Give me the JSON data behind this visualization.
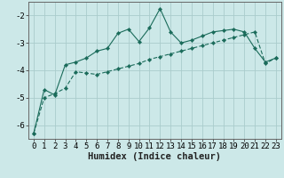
{
  "title": "",
  "xlabel": "Humidex (Indice chaleur)",
  "ylabel": "",
  "background_color": "#cce8e8",
  "grid_color": "#aacccc",
  "line_color": "#1a6b5a",
  "x_values": [
    0,
    1,
    2,
    3,
    4,
    5,
    6,
    7,
    8,
    9,
    10,
    11,
    12,
    13,
    14,
    15,
    16,
    17,
    18,
    19,
    20,
    21,
    22,
    23
  ],
  "line1_y": [
    -6.3,
    -4.7,
    -4.9,
    -3.8,
    -3.7,
    -3.55,
    -3.3,
    -3.2,
    -2.65,
    -2.5,
    -2.95,
    -2.45,
    -1.75,
    -2.6,
    -3.0,
    -2.9,
    -2.75,
    -2.6,
    -2.55,
    -2.5,
    -2.6,
    -3.2,
    -3.7,
    -3.55
  ],
  "line2_y": [
    -6.3,
    -5.0,
    -4.85,
    -4.65,
    -4.05,
    -4.1,
    -4.15,
    -4.05,
    -3.95,
    -3.85,
    -3.75,
    -3.6,
    -3.5,
    -3.4,
    -3.3,
    -3.2,
    -3.1,
    -3.0,
    -2.9,
    -2.8,
    -2.7,
    -2.6,
    -3.75,
    -3.55
  ],
  "ylim": [
    -6.5,
    -1.5
  ],
  "xlim": [
    -0.5,
    23.5
  ],
  "yticks": [
    -6,
    -5,
    -4,
    -3,
    -2
  ],
  "xticks": [
    0,
    1,
    2,
    3,
    4,
    5,
    6,
    7,
    8,
    9,
    10,
    11,
    12,
    13,
    14,
    15,
    16,
    17,
    18,
    19,
    20,
    21,
    22,
    23
  ],
  "xlabel_fontsize": 7.5,
  "tick_fontsize": 6.5
}
